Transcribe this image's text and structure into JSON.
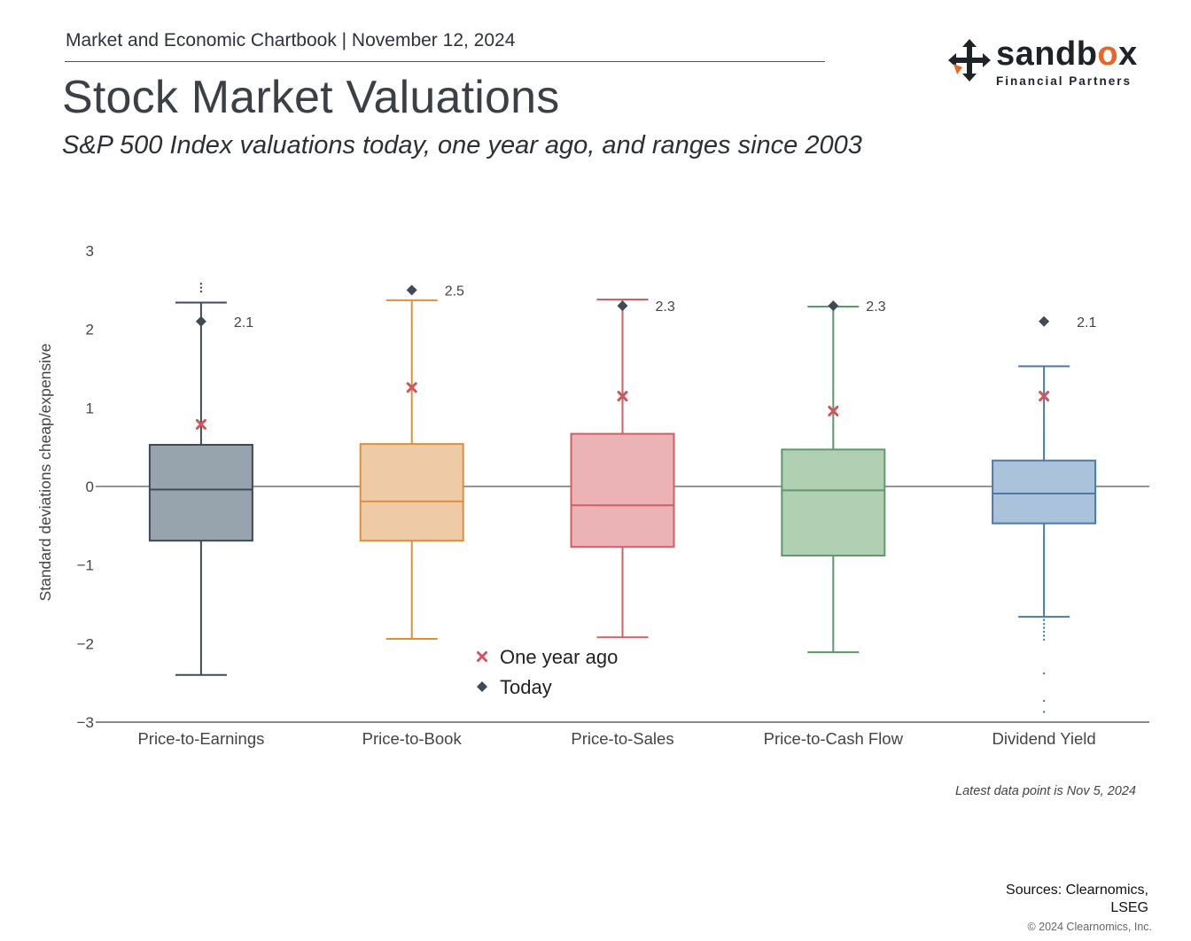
{
  "header": {
    "chartbook": "Market and Economic Chartbook | November 12, 2024",
    "title": "Stock Market Valuations",
    "subtitle": "S&P 500 Index valuations today, one year ago, and ranges since 2003"
  },
  "logo": {
    "word_start": "sandb",
    "word_o": "o",
    "word_end": "x",
    "sub": "Financial Partners",
    "accent": "#e6672c"
  },
  "chart_data": {
    "type": "box",
    "title": "",
    "xlabel": "",
    "ylabel": "Standard deviations cheap/expensive",
    "ylim": [
      -3,
      3
    ],
    "yticks": [
      3,
      2,
      1,
      0,
      -1,
      -2,
      -3
    ],
    "ytick_labels": [
      "3",
      "2",
      "1",
      "0",
      "−1",
      "−2",
      "−3"
    ],
    "categories": [
      "Price-to-Earnings",
      "Price-to-Book",
      "Price-to-Sales",
      "Price-to-Cash Flow",
      "Dividend Yield"
    ],
    "boxes": [
      {
        "category": "Price-to-Earnings",
        "whisker_low": -2.4,
        "q1": -0.69,
        "median": -0.04,
        "q3": 0.53,
        "whisker_high": 2.34,
        "outliers": [
          2.48,
          2.53,
          2.58
        ],
        "one_year_ago": 0.79,
        "today": 2.1,
        "today_label": "2.1",
        "color": "#3d4a57",
        "fill": "#98a4ad"
      },
      {
        "category": "Price-to-Book",
        "whisker_low": -1.94,
        "q1": -0.69,
        "median": -0.19,
        "q3": 0.54,
        "whisker_high": 2.37,
        "outliers": [],
        "one_year_ago": 1.26,
        "today": 2.5,
        "today_label": "2.5",
        "color": "#de8f3a",
        "fill": "#eecba6"
      },
      {
        "category": "Price-to-Sales",
        "whisker_low": -1.92,
        "q1": -0.77,
        "median": -0.24,
        "q3": 0.67,
        "whisker_high": 2.38,
        "outliers": [],
        "one_year_ago": 1.15,
        "today": 2.3,
        "today_label": "2.3",
        "color": "#d25e67",
        "fill": "#ebb3b6"
      },
      {
        "category": "Price-to-Cash Flow",
        "whisker_low": -2.11,
        "q1": -0.88,
        "median": -0.05,
        "q3": 0.47,
        "whisker_high": 2.29,
        "outliers": [],
        "one_year_ago": 0.96,
        "today": 2.3,
        "today_label": "2.3",
        "color": "#5d9a6a",
        "fill": "#b0cfb3"
      },
      {
        "category": "Dividend Yield",
        "whisker_low": -1.66,
        "q1": -0.47,
        "median": -0.09,
        "q3": 0.33,
        "whisker_high": 1.53,
        "outliers": [
          -1.7,
          -1.75,
          -1.8,
          -1.85,
          -1.9,
          -1.95,
          -2.38,
          -2.73,
          -2.87
        ],
        "one_year_ago": 1.15,
        "today": 2.1,
        "today_label": "2.1",
        "color": "#4c79a6",
        "fill": "#abc3da"
      }
    ],
    "legend": {
      "position": "bottom-center",
      "items": [
        {
          "label": "One year ago",
          "marker": "x",
          "color": "#d0555c"
        },
        {
          "label": "Today",
          "marker": "diamond",
          "color": "#3f4a55"
        }
      ]
    },
    "zero_line": true,
    "grid": false
  },
  "footer": {
    "latest": "Latest data point is Nov 5, 2024",
    "sources_line1": "Sources: Clearnomics,",
    "sources_line2": "LSEG",
    "copyright": "© 2024 Clearnomics, Inc."
  }
}
